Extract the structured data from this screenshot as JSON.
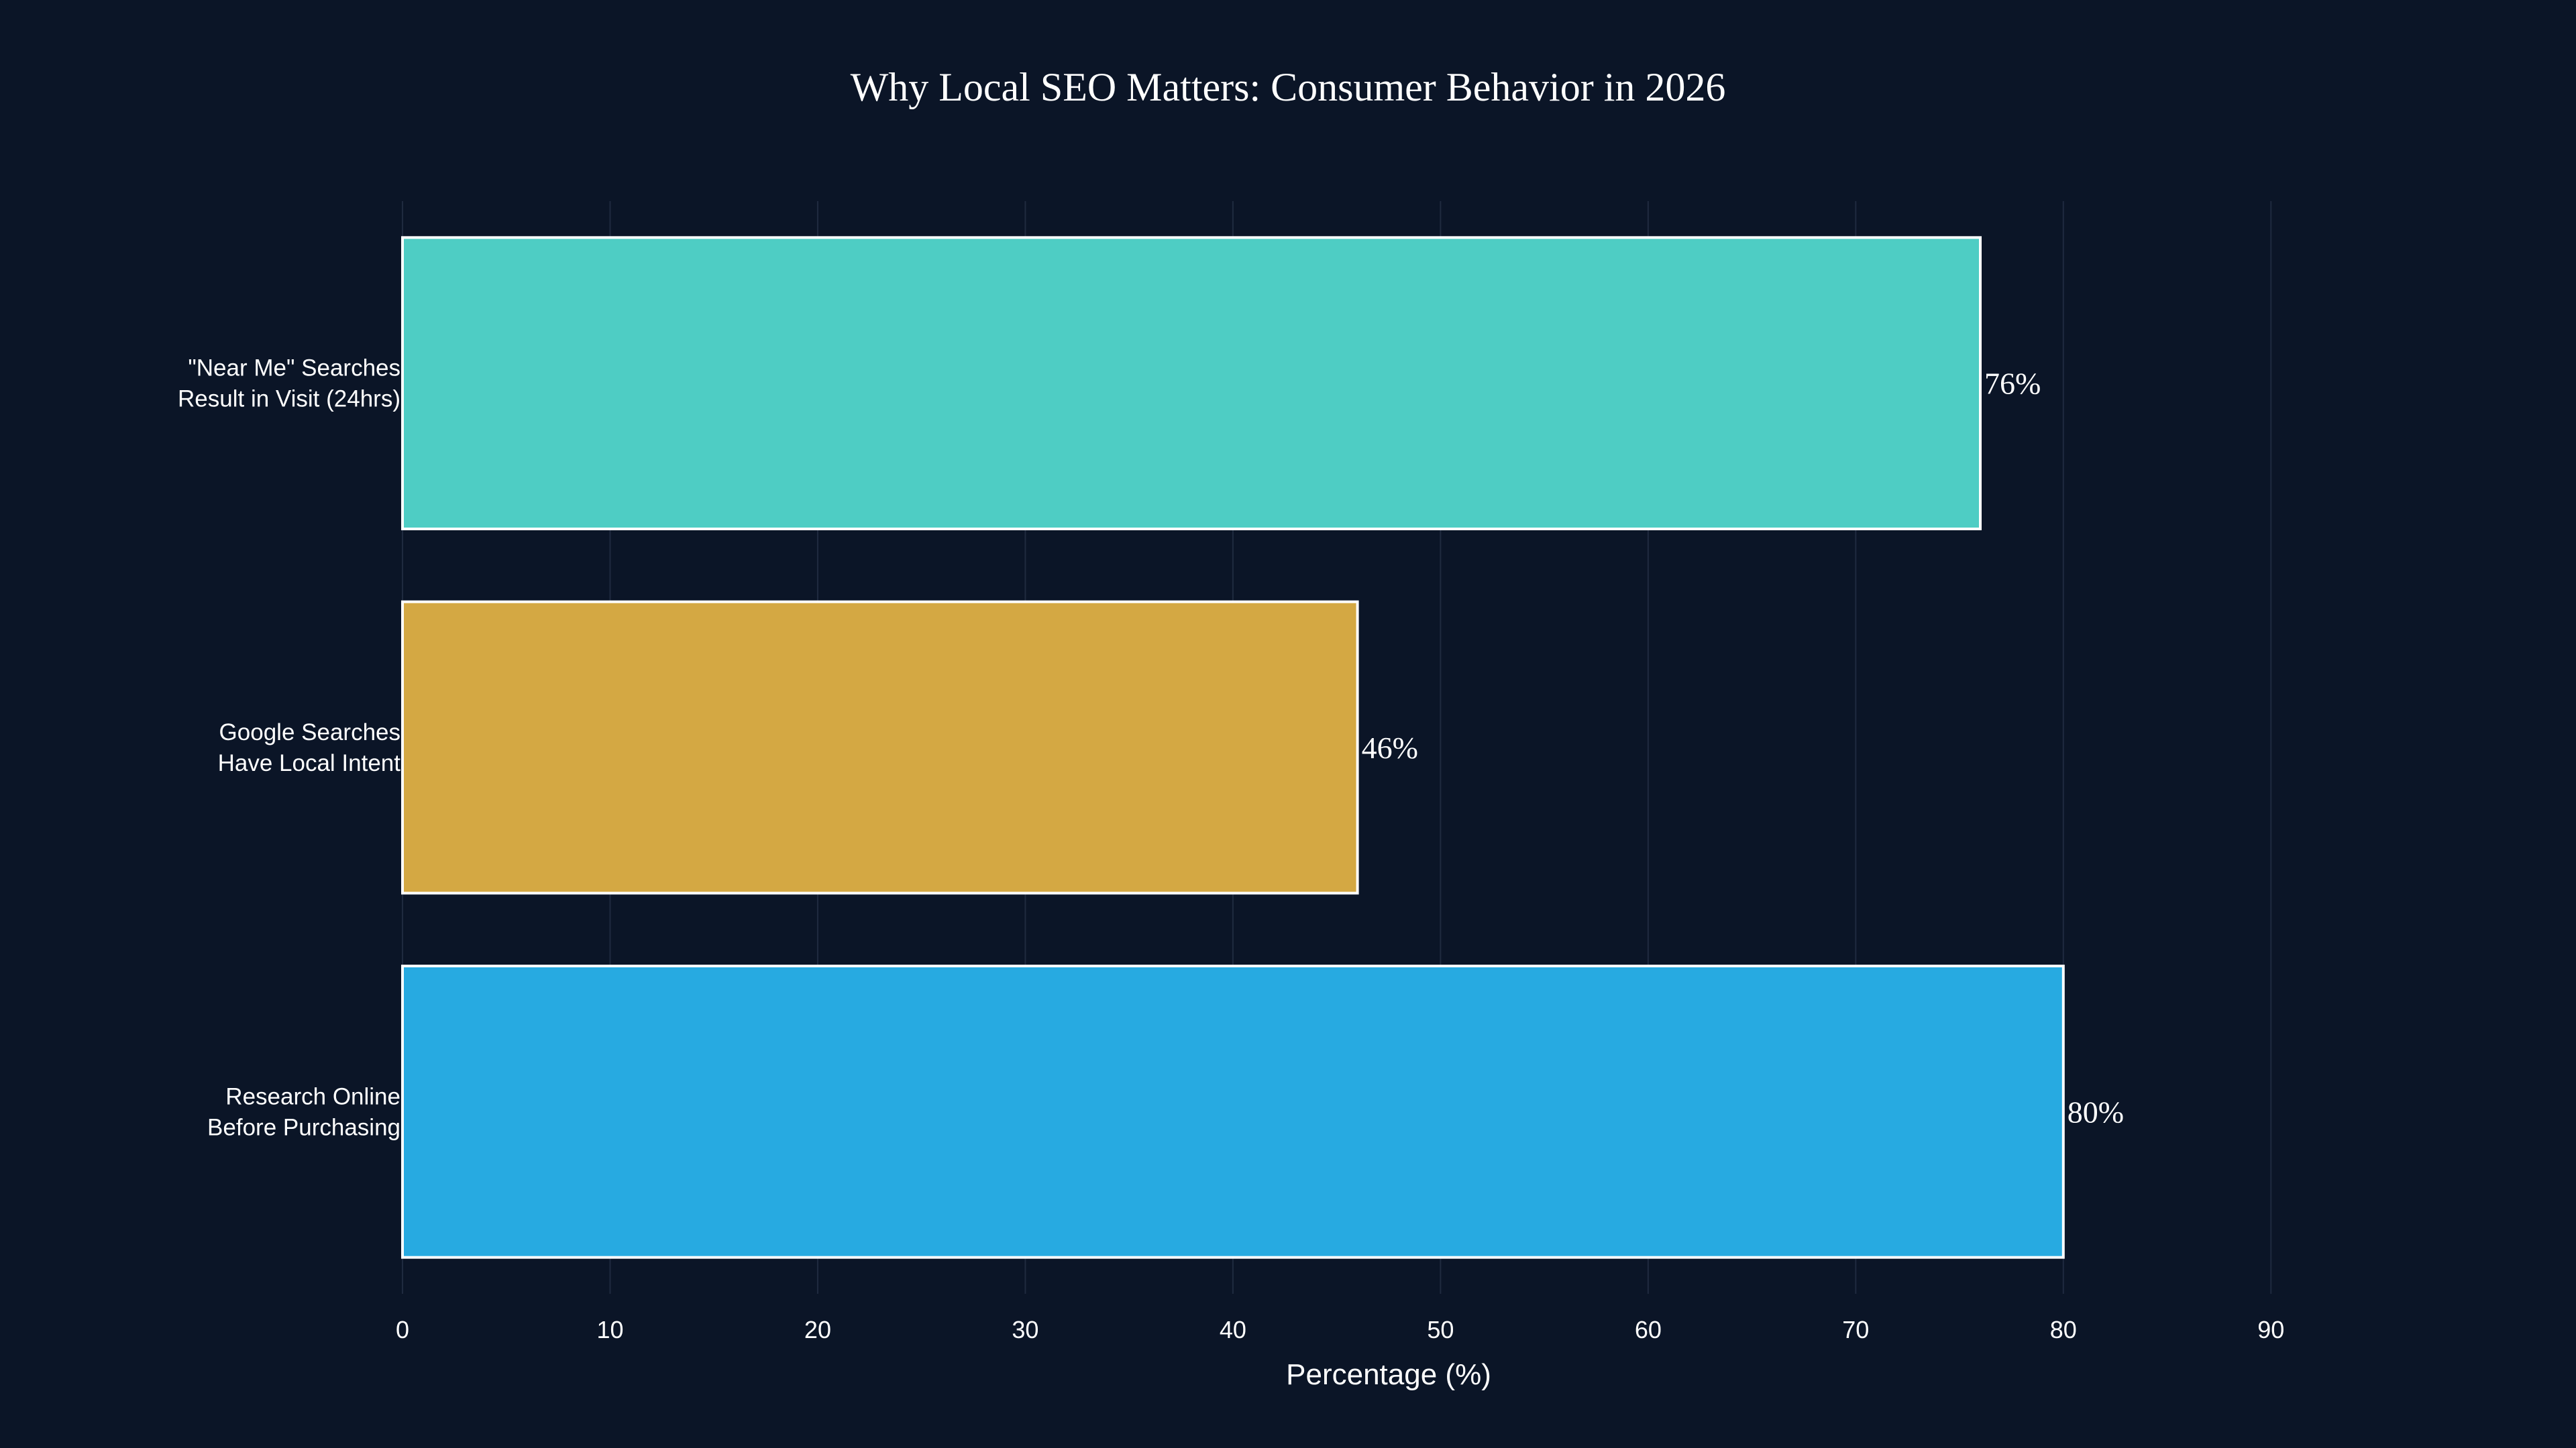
{
  "chart_data": {
    "type": "bar",
    "orientation": "horizontal",
    "title": "Why Local SEO Matters: Consumer Behavior in 2026",
    "xlabel": "Percentage (%)",
    "ylabel": "",
    "xlim": [
      0,
      95
    ],
    "x_ticks": [
      0,
      10,
      20,
      30,
      40,
      50,
      60,
      70,
      80,
      90
    ],
    "grid": "vertical",
    "categories": [
      [
        "\"Near Me\" Searches",
        "Result in Visit (24hrs)"
      ],
      [
        "Google Searches",
        "Have Local Intent"
      ],
      [
        "Research Online",
        "Before Purchasing"
      ]
    ],
    "values": [
      76,
      46,
      80
    ],
    "value_labels": [
      "76%",
      "46%",
      "80%"
    ],
    "colors": [
      "#4ecdc4",
      "#d4a843",
      "#27aae1"
    ],
    "bar_outline_color": "#ffffff",
    "background_color": "#0b1527"
  }
}
